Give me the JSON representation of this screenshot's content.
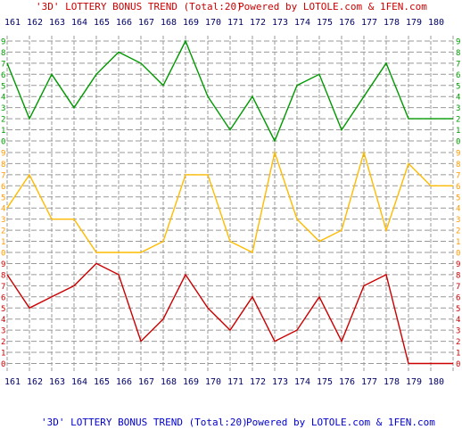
{
  "header": {
    "title": "'3D' LOTTERY BONUS TREND (Total:20)",
    "credit": "Powered by LOTOLE.com & 1FEN.com"
  },
  "footer": {
    "title": "'3D' LOTTERY BONUS TREND (Total:20)",
    "credit": "Powered by LOTOLE.com & 1FEN.com"
  },
  "colors": {
    "title": "#cc0000",
    "footer_text": "#0000cc",
    "grid_line": "#999999",
    "issue_text": "#000066",
    "digit_colors": [
      "#cc0000",
      "#ff9900",
      "#009900"
    ]
  },
  "chart_data": {
    "type": "line",
    "title": "'3D' LOTTERY BONUS TREND (Total:20)",
    "x": [
      "161",
      "162",
      "163",
      "164",
      "165",
      "166",
      "167",
      "168",
      "169",
      "170",
      "171",
      "172",
      "173",
      "174",
      "175",
      "176",
      "177",
      "178",
      "179",
      "180"
    ],
    "y_ticks": [
      "0",
      "1",
      "2",
      "3",
      "4",
      "5",
      "6",
      "7",
      "8",
      "9"
    ],
    "grid": true,
    "series": [
      {
        "color": "#009900",
        "values": [
          7,
          2,
          6,
          3,
          6,
          8,
          7,
          5,
          9,
          4,
          1,
          4,
          0,
          5,
          6,
          1,
          4,
          7,
          2,
          2
        ]
      },
      {
        "color": "#ffbb00",
        "values": [
          4,
          7,
          3,
          3,
          0,
          0,
          0,
          1,
          7,
          7,
          1,
          0,
          9,
          3,
          1,
          2,
          9,
          2,
          8,
          6
        ]
      },
      {
        "color": "#cc0000",
        "values": [
          8,
          5,
          6,
          7,
          9,
          8,
          2,
          4,
          8,
          5,
          3,
          6,
          2,
          3,
          6,
          2,
          7,
          8,
          0,
          0
        ]
      }
    ]
  }
}
